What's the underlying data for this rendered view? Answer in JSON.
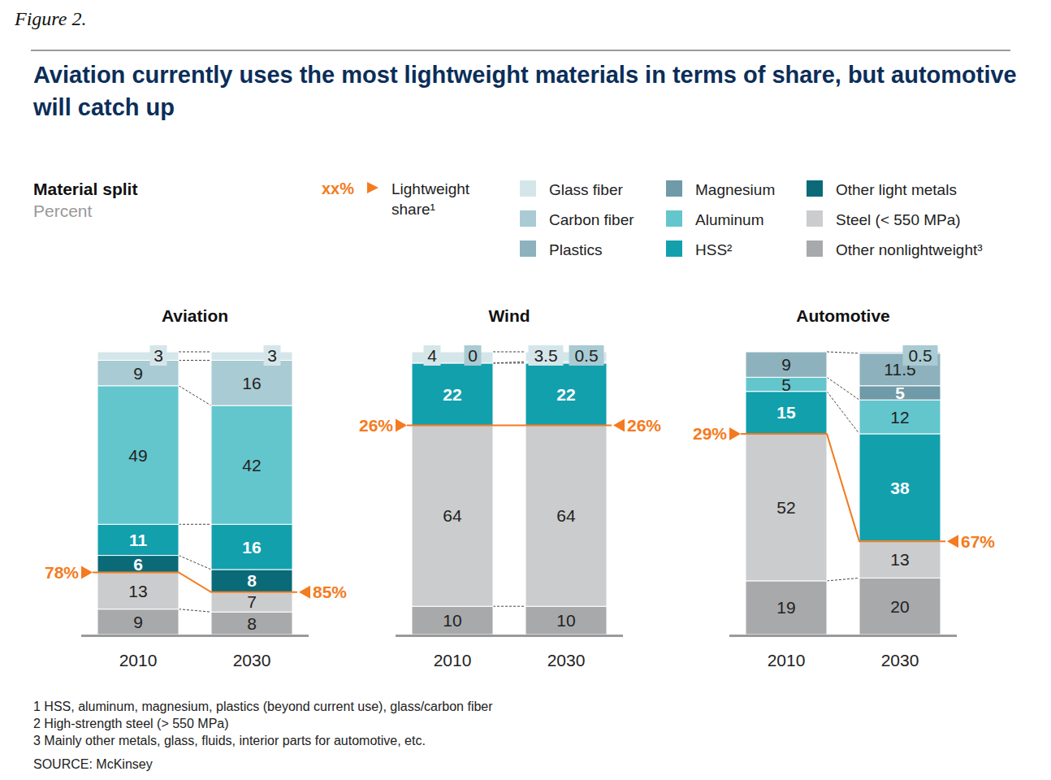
{
  "figure_label": "Figure 2.",
  "title": "Aviation currently uses the most lightweight materials in terms of share, but automotive will catch up",
  "subtitle": "Material split",
  "unit_label": "Percent",
  "lightweight_legend": {
    "symbol": "xx%",
    "label": "Lightweight share¹"
  },
  "footnotes": [
    "1 HSS, aluminum, magnesium, plastics (beyond current use), glass/carbon fiber",
    "2 High-strength steel (> 550 MPa)",
    "3 Mainly other metals, glass, fluids, interior parts for automotive, etc."
  ],
  "source": "SOURCE: McKinsey",
  "chart_data": [
    {
      "type": "bar",
      "title": "Aviation",
      "categories": [
        "2010",
        "2030"
      ],
      "stacked": true,
      "data_labels": true,
      "tick_labels": "x",
      "ylim": [
        0,
        100
      ],
      "series": [
        {
          "name": "Glass fiber",
          "color": "#d5e6ea",
          "values": [
            3,
            3
          ]
        },
        {
          "name": "Carbon fiber",
          "color": "#a9cbd3",
          "values": [
            9,
            16
          ]
        },
        {
          "name": "Plastics",
          "color": "#8eb2bd",
          "values": [
            null,
            null
          ]
        },
        {
          "name": "Magnesium",
          "color": "#6f9aa7",
          "values": [
            null,
            null
          ]
        },
        {
          "name": "Aluminum",
          "color": "#63c6cd",
          "values": [
            49,
            42
          ]
        },
        {
          "name": "HSS²",
          "color": "#12a0ad",
          "values": [
            11,
            16
          ]
        },
        {
          "name": "Other light metals",
          "color": "#0a6a78",
          "values": [
            6,
            8
          ]
        },
        {
          "name": "Steel (< 550 MPa)",
          "color": "#cbcccd",
          "values": [
            13,
            7
          ]
        },
        {
          "name": "Other nonlightweight³",
          "color": "#a8a9ab",
          "values": [
            9,
            8
          ]
        }
      ],
      "lightweight_share": {
        "values": [
          78,
          85
        ],
        "value_labels": [
          "78%",
          "85%"
        ]
      }
    },
    {
      "type": "bar",
      "title": "Wind",
      "categories": [
        "2010",
        "2030"
      ],
      "stacked": true,
      "data_labels": true,
      "tick_labels": "x",
      "ylim": [
        0,
        100
      ],
      "series": [
        {
          "name": "Glass fiber",
          "color": "#d5e6ea",
          "values": [
            4,
            3.5
          ]
        },
        {
          "name": "Carbon fiber",
          "color": "#a9cbd3",
          "values": [
            0,
            0.5
          ]
        },
        {
          "name": "Plastics",
          "color": "#8eb2bd",
          "values": [
            null,
            null
          ]
        },
        {
          "name": "Magnesium",
          "color": "#6f9aa7",
          "values": [
            null,
            null
          ]
        },
        {
          "name": "Aluminum",
          "color": "#63c6cd",
          "values": [
            null,
            null
          ]
        },
        {
          "name": "HSS²",
          "color": "#12a0ad",
          "values": [
            22,
            22
          ]
        },
        {
          "name": "Other light metals",
          "color": "#0a6a78",
          "values": [
            null,
            null
          ]
        },
        {
          "name": "Steel (< 550 MPa)",
          "color": "#cbcccd",
          "values": [
            64,
            64
          ]
        },
        {
          "name": "Other nonlightweight³",
          "color": "#a8a9ab",
          "values": [
            10,
            10
          ]
        }
      ],
      "lightweight_share": {
        "values": [
          26,
          26
        ],
        "value_labels": [
          "26%",
          "26%"
        ]
      }
    },
    {
      "type": "bar",
      "title": "Automotive",
      "categories": [
        "2010",
        "2030"
      ],
      "stacked": true,
      "data_labels": true,
      "tick_labels": "x",
      "ylim": [
        0,
        100
      ],
      "series": [
        {
          "name": "Glass fiber",
          "color": "#d5e6ea",
          "values": [
            null,
            null
          ]
        },
        {
          "name": "Carbon fiber",
          "color": "#a9cbd3",
          "values": [
            null,
            0.5
          ]
        },
        {
          "name": "Plastics",
          "color": "#8eb2bd",
          "values": [
            9,
            11.5
          ]
        },
        {
          "name": "Magnesium",
          "color": "#6f9aa7",
          "values": [
            null,
            5
          ]
        },
        {
          "name": "Aluminum",
          "color": "#63c6cd",
          "values": [
            5,
            12
          ]
        },
        {
          "name": "HSS²",
          "color": "#12a0ad",
          "values": [
            15,
            38
          ]
        },
        {
          "name": "Other light metals",
          "color": "#0a6a78",
          "values": [
            null,
            null
          ]
        },
        {
          "name": "Steel (< 550 MPa)",
          "color": "#cbcccd",
          "values": [
            52,
            13
          ]
        },
        {
          "name": "Other nonlightweight³",
          "color": "#a8a9ab",
          "values": [
            19,
            20
          ]
        }
      ],
      "lightweight_share": {
        "values": [
          29,
          67
        ],
        "value_labels": [
          "29%",
          "67%"
        ]
      }
    }
  ]
}
